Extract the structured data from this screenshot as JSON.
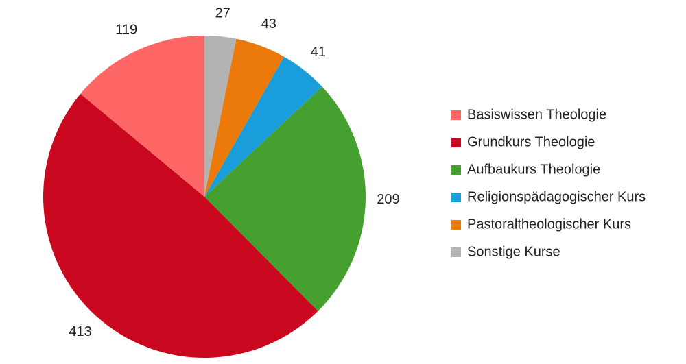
{
  "chart_data": {
    "type": "pie",
    "categories": [
      "Basiswissen Theologie",
      "Grundkurs Theologie",
      "Aufbaukurs Theologie",
      "Religionspädagogischer Kurs",
      "Pastoraltheologischer Kurs",
      "Sonstige Kurse"
    ],
    "values": [
      119,
      413,
      209,
      41,
      43,
      27
    ],
    "colors": [
      "#ff6666",
      "#c9071e",
      "#46a02f",
      "#1a9edb",
      "#ec7a0a",
      "#b3b3b3"
    ],
    "legend": "right"
  }
}
